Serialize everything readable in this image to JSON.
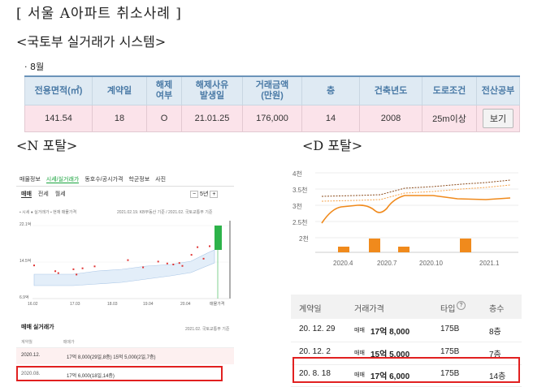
{
  "heading": "[ 서울 A아파트 취소사례 ]",
  "subheading": "<국토부 실거래가 시스템>",
  "month_label": "· 8월",
  "molit_table": {
    "headers": [
      "전용면적(㎡)",
      "계약일",
      "해제\n여부",
      "해제사유\n발생일",
      "거래금액\n(만원)",
      "층",
      "건축년도",
      "도로조건",
      "전산공부"
    ],
    "row": [
      "141.54",
      "18",
      "O",
      "21.01.25",
      "176,000",
      "14",
      "2008",
      "25m이상",
      "보기"
    ]
  },
  "n_portal": {
    "title": "<N 포탈>",
    "tabs": [
      "매물정보",
      "시세/실거래가",
      "동호수/공시가격",
      "학군정보",
      "사진"
    ],
    "active_tab": "시세/실거래가",
    "subtabs": [
      "매매",
      "전세",
      "월세"
    ],
    "period": "5년",
    "legend": "▪ 시세  ● 실거래가  ▪ 현재 매물가격",
    "source_note": "2021.02.19. KB부동산 기준 / 2021.02. 국토교통부 기준",
    "chart_data": {
      "type": "scatter",
      "x_ticks": [
        "16.02",
        "17.03",
        "18.03",
        "19.04",
        "20.04",
        "매물가격"
      ],
      "y_ticks": [
        "22.1억",
        "14.5억",
        "6.9억"
      ],
      "series_colors": {
        "시세": "#4f84c4",
        "실거래가": "#e03333",
        "현재 매물가격": "#2db34a"
      },
      "points": [
        {
          "x": "16.02",
          "y": 13.8
        },
        {
          "x": "16.09",
          "y": 12.6
        },
        {
          "x": "16.10",
          "y": 12.2
        },
        {
          "x": "17.03",
          "y": 13.0
        },
        {
          "x": "17.04",
          "y": 11.9
        },
        {
          "x": "17.06",
          "y": 13.2
        },
        {
          "x": "17.10",
          "y": 13.6
        },
        {
          "x": "18.09",
          "y": 14.9
        },
        {
          "x": "19.02",
          "y": 13.4
        },
        {
          "x": "19.07",
          "y": 14.6
        },
        {
          "x": "19.10",
          "y": 14.2
        },
        {
          "x": "19.12",
          "y": 14.0
        },
        {
          "x": "20.02",
          "y": 14.3
        },
        {
          "x": "20.03",
          "y": 13.7
        },
        {
          "x": "20.06",
          "y": 16.0
        },
        {
          "x": "20.08",
          "y": 17.6
        },
        {
          "x": "20.10",
          "y": 15.2
        },
        {
          "x": "20.12",
          "y": 17.8
        }
      ],
      "current_listing_range": [
        19.0,
        22.1
      ]
    },
    "list_title": "매매 실거래가",
    "list_note": "2021.02. 국토교통부 기준",
    "list_cols": [
      "계약월",
      "매매가"
    ],
    "list_rows": [
      {
        "month": "2020.12.",
        "price": "17억 8,000(29일,8층)  15억 5,000(2일,7층)"
      },
      {
        "month": "2020.08.",
        "price": "17억 6,000(18일,14층)"
      }
    ]
  },
  "d_portal": {
    "title": "<D 포탈>",
    "chart_data": {
      "type": "line",
      "x_ticks": [
        "2020.4",
        "2020.7",
        "2020.10",
        "2021.1"
      ],
      "y_ticks": [
        "4천",
        "3.5천",
        "3천",
        "2.5천",
        "2천"
      ],
      "line_color": "#f08a1c",
      "bars": [
        {
          "x": "2020.4",
          "value": 1
        },
        {
          "x": "2020.6",
          "value": 2
        },
        {
          "x": "2020.8",
          "value": 1
        },
        {
          "x": "2020.12",
          "value": 2
        }
      ]
    },
    "table_headers": [
      "계약일",
      "거래가격",
      "타입",
      "층수"
    ],
    "rows": [
      {
        "date": "20. 12. 29",
        "kind": "매매",
        "price": "17억 8,000",
        "type": "175B",
        "floor": "8층"
      },
      {
        "date": "20. 12. 2",
        "kind": "매매",
        "price": "15억 5,000",
        "type": "175B",
        "floor": "7층"
      },
      {
        "date": "20. 8. 18",
        "kind": "매매",
        "price": "17억 6,000",
        "type": "175B",
        "floor": "14층"
      }
    ]
  }
}
